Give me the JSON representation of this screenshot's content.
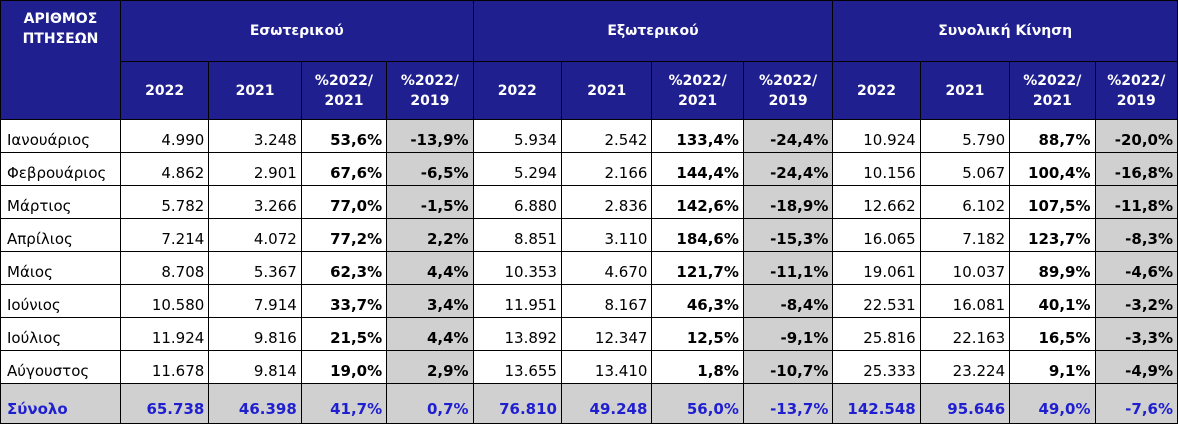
{
  "header": {
    "corner": "ΑΡΙΘΜΟΣ ΠΤΗΣΕΩΝ",
    "groups": [
      "Εσωτερικού",
      "Εξωτερικού",
      "Συνολική Κίνηση"
    ],
    "subcols": [
      "2022",
      "2021",
      "%2022/ 2021",
      "%2022/ 2019"
    ]
  },
  "rows": [
    {
      "month": "Ιανουάριος",
      "v": [
        "4.990",
        "3.248",
        "53,6%",
        "-13,9%",
        "5.934",
        "2.542",
        "133,4%",
        "-24,4%",
        "10.924",
        "5.790",
        "88,7%",
        "-20,0%"
      ]
    },
    {
      "month": "Φεβρουάριος",
      "v": [
        "4.862",
        "2.901",
        "67,6%",
        "-6,5%",
        "5.294",
        "2.166",
        "144,4%",
        "-24,4%",
        "10.156",
        "5.067",
        "100,4%",
        "-16,8%"
      ]
    },
    {
      "month": "Μάρτιος",
      "v": [
        "5.782",
        "3.266",
        "77,0%",
        "-1,5%",
        "6.880",
        "2.836",
        "142,6%",
        "-18,9%",
        "12.662",
        "6.102",
        "107,5%",
        "-11,8%"
      ]
    },
    {
      "month": "Απρίλιος",
      "v": [
        "7.214",
        "4.072",
        "77,2%",
        "2,2%",
        "8.851",
        "3.110",
        "184,6%",
        "-15,3%",
        "16.065",
        "7.182",
        "123,7%",
        "-8,3%"
      ]
    },
    {
      "month": "Μάιος",
      "v": [
        "8.708",
        "5.367",
        "62,3%",
        "4,4%",
        "10.353",
        "4.670",
        "121,7%",
        "-11,1%",
        "19.061",
        "10.037",
        "89,9%",
        "-4,6%"
      ]
    },
    {
      "month": "Ιούνιος",
      "v": [
        "10.580",
        "7.914",
        "33,7%",
        "3,4%",
        "11.951",
        "8.167",
        "46,3%",
        "-8,4%",
        "22.531",
        "16.081",
        "40,1%",
        "-3,2%"
      ]
    },
    {
      "month": "Ιούλιος",
      "v": [
        "11.924",
        "9.816",
        "21,5%",
        "4,4%",
        "13.892",
        "12.347",
        "12,5%",
        "-9,1%",
        "25.816",
        "22.163",
        "16,5%",
        "-3,3%"
      ]
    },
    {
      "month": "Αύγουστος",
      "v": [
        "11.678",
        "9.814",
        "19,0%",
        "2,9%",
        "13.655",
        "13.410",
        "1,8%",
        "-10,7%",
        "25.333",
        "23.224",
        "9,1%",
        "-4,9%"
      ]
    }
  ],
  "total": {
    "label": "Σύνολο",
    "v": [
      "65.738",
      "46.398",
      "41,7%",
      "0,7%",
      "76.810",
      "49.248",
      "56,0%",
      "-13,7%",
      "142.548",
      "95.646",
      "49,0%",
      "-7,6%"
    ]
  },
  "colors": {
    "header_bg": "#1f1f8f",
    "header_text": "#ffffff",
    "shade": "#d0d0d0",
    "total_text": "#1f1fd0"
  }
}
